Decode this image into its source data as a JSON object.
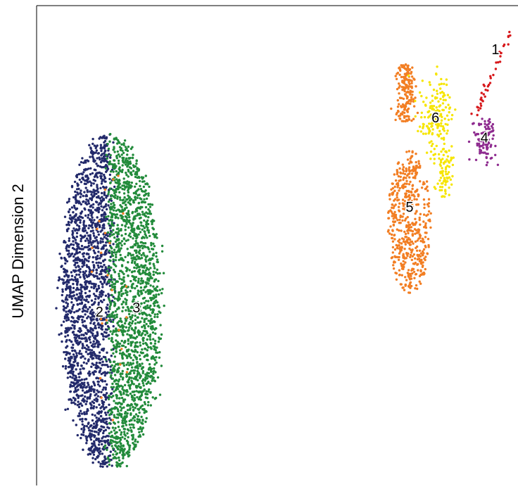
{
  "chart_data": {
    "type": "scatter",
    "title": "",
    "xlabel": "",
    "ylabel": "UMAP Dimension 2",
    "xlim": [
      0,
      100
    ],
    "ylim": [
      0,
      100
    ],
    "grid": false,
    "legend": "none",
    "series": [
      {
        "name": "1",
        "color": "#D7191C",
        "count": 40,
        "center": [
          95.5,
          85.5
        ]
      },
      {
        "name": "2",
        "color": "#232A6B",
        "count": 1800,
        "center": [
          12.8,
          36.3
        ]
      },
      {
        "name": "3",
        "color": "#228B3B",
        "count": 1800,
        "center": [
          20.5,
          37.2
        ]
      },
      {
        "name": "4",
        "color": "#8E2B8F",
        "count": 100,
        "center": [
          93.0,
          70.6
        ]
      },
      {
        "name": "5",
        "color": "#F27E23",
        "count": 700,
        "center": [
          77.4,
          56.7
        ]
      },
      {
        "name": "6",
        "color": "#F6E500",
        "count": 250,
        "center": [
          82.8,
          74.1
        ]
      }
    ],
    "cluster_labels": [
      {
        "text": "1",
        "x": 95.3,
        "y": 91.2
      },
      {
        "text": "2",
        "x": 12.8,
        "y": 36.3
      },
      {
        "text": "3",
        "x": 20.5,
        "y": 37.2
      },
      {
        "text": "4",
        "x": 93.0,
        "y": 72.7
      },
      {
        "text": "5",
        "x": 77.4,
        "y": 58.2
      },
      {
        "text": "6",
        "x": 82.8,
        "y": 76.9
      }
    ]
  }
}
